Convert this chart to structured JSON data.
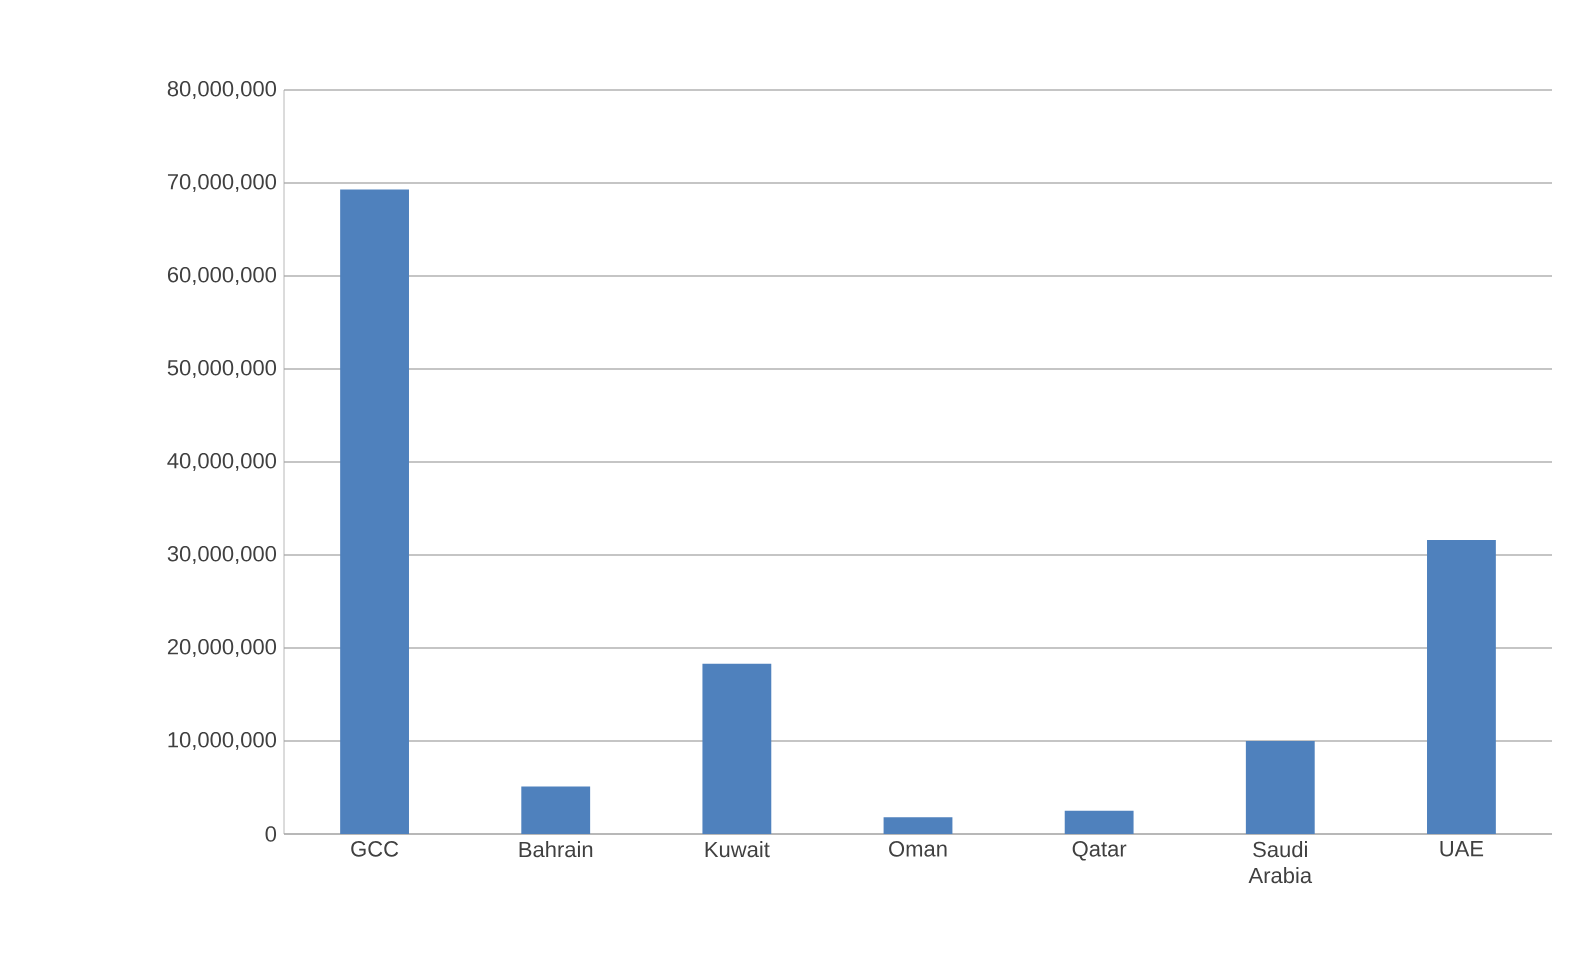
{
  "chart_data": {
    "type": "bar",
    "categories": [
      "GCC",
      "Bahrain",
      "Kuwait",
      "Oman",
      "Qatar",
      "Saudi Arabia",
      "UAE"
    ],
    "values": [
      69300000,
      5100000,
      18300000,
      1800000,
      2500000,
      10000000,
      31600000
    ],
    "color": "#4f81bd",
    "ylim": [
      0,
      80000000
    ],
    "yticks": [
      {
        "value": 0,
        "label": "0"
      },
      {
        "value": 10000000,
        "label": "10,000,000"
      },
      {
        "value": 20000000,
        "label": "20,000,000"
      },
      {
        "value": 30000000,
        "label": "30,000,000"
      },
      {
        "value": 40000000,
        "label": "40,000,000"
      },
      {
        "value": 50000000,
        "label": "50,000,000"
      },
      {
        "value": 60000000,
        "label": "60,000,000"
      },
      {
        "value": 70000000,
        "label": "70,000,000"
      },
      {
        "value": 80000000,
        "label": "80,000,000"
      }
    ],
    "grid": "y"
  }
}
